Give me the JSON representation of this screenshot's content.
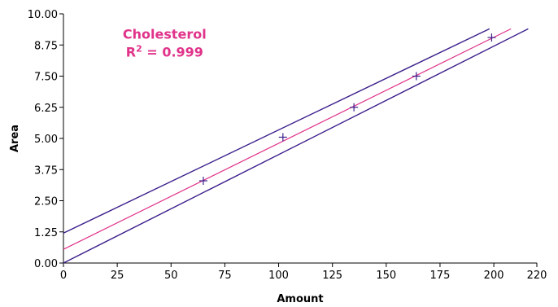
{
  "chart_data": {
    "type": "scatter",
    "title": "",
    "xlabel": "Amount",
    "ylabel": "Area",
    "xlim": [
      0,
      220
    ],
    "ylim": [
      0,
      10
    ],
    "x_ticks": [
      "0",
      "25",
      "50",
      "75",
      "100",
      "125",
      "150",
      "175",
      "200",
      "220"
    ],
    "x_tick_values": [
      0,
      25,
      50,
      75,
      100,
      125,
      150,
      175,
      200,
      220
    ],
    "y_ticks": [
      "0.00",
      "1.25",
      "2.50",
      "3.75",
      "5.00",
      "6.25",
      "7.50",
      "8.75",
      "10.00"
    ],
    "y_tick_values": [
      0,
      1.25,
      2.5,
      3.75,
      5,
      6.25,
      7.5,
      8.75,
      10
    ],
    "grid": false,
    "points": [
      {
        "x": 65,
        "y": 3.3
      },
      {
        "x": 102,
        "y": 5.05
      },
      {
        "x": 135,
        "y": 6.25
      },
      {
        "x": 164,
        "y": 7.5
      },
      {
        "x": 199,
        "y": 9.05
      }
    ],
    "fit_line": {
      "x": [
        0,
        208
      ],
      "y": [
        0.55,
        9.4
      ],
      "color": "#e0338a"
    },
    "confidence_upper": {
      "x": [
        0,
        198
      ],
      "y": [
        1.2,
        9.4
      ],
      "color": "#3b1f8c"
    },
    "confidence_lower": {
      "x": [
        0,
        216
      ],
      "y": [
        0.0,
        9.4
      ],
      "color": "#3b1f8c"
    },
    "point_color": "#3b1f8c",
    "annotation": {
      "name": "Cholesterol",
      "r_squared_label": "R",
      "r_squared_sup": "2",
      "r_squared_value": " = 0.999",
      "color": "#e0338a",
      "anchor_x": 30,
      "anchor_y": 9.0
    }
  }
}
